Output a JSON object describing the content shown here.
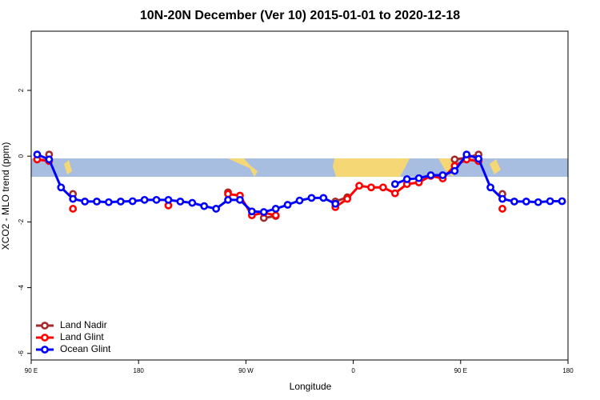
{
  "chart_data": {
    "type": "line",
    "title": "10N-20N December (Ver 10)   2015-01-01 to 2020-12-18",
    "x_label": "Longitude",
    "y_label": "XCO2 - MLO trend (ppm)",
    "x": [
      95,
      105,
      115,
      125,
      135,
      145,
      155,
      165,
      175,
      185,
      195,
      205,
      215,
      225,
      235,
      245,
      255,
      265,
      275,
      285,
      295,
      305,
      315,
      325,
      335,
      345,
      355,
      365,
      375,
      385,
      395,
      405,
      415,
      425,
      435,
      445,
      455,
      465,
      475,
      485,
      495,
      505,
      515,
      525,
      535
    ],
    "series": [
      {
        "name": "Land Nadir",
        "color": "#a52a2a",
        "values": [
          null,
          0.05,
          null,
          -1.15,
          null,
          null,
          null,
          null,
          null,
          null,
          null,
          null,
          null,
          null,
          null,
          null,
          -1.1,
          null,
          null,
          -1.88,
          -1.82,
          null,
          null,
          null,
          null,
          -1.38,
          -1.25,
          null,
          null,
          null,
          null,
          null,
          null,
          null,
          null,
          -0.1,
          -0.05,
          0.05,
          null,
          -1.15,
          null,
          null,
          null,
          null,
          null
        ]
      },
      {
        "name": "Land Glint",
        "color": "#ff0000",
        "values": [
          -0.1,
          -0.15,
          null,
          -1.6,
          null,
          null,
          null,
          null,
          null,
          null,
          null,
          -1.5,
          null,
          null,
          null,
          null,
          -1.15,
          -1.2,
          -1.8,
          -1.72,
          -1.8,
          null,
          null,
          null,
          null,
          -1.55,
          -1.3,
          -0.9,
          -0.95,
          -0.95,
          -1.13,
          -0.85,
          -0.8,
          -0.6,
          -0.68,
          -0.3,
          -0.1,
          -0.15,
          null,
          -1.6,
          null,
          null,
          null,
          null,
          null
        ]
      },
      {
        "name": "Ocean Glint",
        "color": "#0000ff",
        "values": [
          0.05,
          -0.1,
          -0.95,
          -1.3,
          -1.38,
          -1.38,
          -1.4,
          -1.38,
          -1.37,
          -1.33,
          -1.33,
          -1.33,
          -1.38,
          -1.42,
          -1.52,
          -1.6,
          -1.33,
          -1.33,
          -1.68,
          -1.7,
          -1.6,
          -1.48,
          -1.35,
          -1.27,
          -1.27,
          -1.45,
          null,
          null,
          null,
          null,
          -0.85,
          -0.7,
          -0.67,
          -0.58,
          -0.58,
          -0.45,
          0.05,
          -0.08,
          -0.95,
          -1.3,
          -1.38,
          -1.38,
          -1.4,
          -1.37,
          -1.37
        ]
      }
    ],
    "xlim": [
      90,
      540
    ],
    "xticks": [
      {
        "value": 90,
        "label": "90 E"
      },
      180,
      {
        "value": 270,
        "label": "90 W"
      },
      {
        "value": 360,
        "label": "0"
      },
      {
        "value": 450,
        "label": "90 E"
      },
      {
        "value": 540,
        "label": "180"
      }
    ],
    "ylim": [
      -6.2,
      3.8
    ],
    "yticks": [
      -6,
      -4,
      -2,
      0,
      2
    ],
    "legend": "bottom-left"
  }
}
